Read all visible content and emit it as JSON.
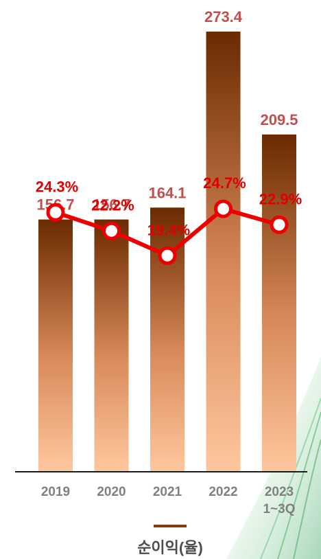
{
  "chart_data": {
    "type": "bar",
    "categories": [
      [
        "2019"
      ],
      [
        "2020"
      ],
      [
        "2021"
      ],
      [
        "2022"
      ],
      [
        "2023",
        "1~3Q"
      ]
    ],
    "series": [
      {
        "type": "bar",
        "values": [
          156.7,
          156.7,
          164.1,
          273.4,
          209.5
        ],
        "value_labels": [
          "156.7",
          "156.7",
          "164.1",
          "273.4",
          "209.5"
        ],
        "color_top": "#6b2a00",
        "color_bottom": "#ffc79e"
      },
      {
        "type": "line",
        "values": [
          24.3,
          22.2,
          19.4,
          24.7,
          22.9
        ],
        "value_labels": [
          "24.3%",
          "22.2%",
          "19.4%",
          "24.7%",
          "22.9%"
        ],
        "color": "#ee0000",
        "marker_fill": "#ffffff"
      }
    ],
    "ylim_bars": [
      0,
      300
    ],
    "ylim_line": [
      -5,
      30
    ],
    "grid": false,
    "legend": {
      "label": "순이익(율)",
      "position": "bottom",
      "swatch_color": "#8b3a0f"
    }
  }
}
